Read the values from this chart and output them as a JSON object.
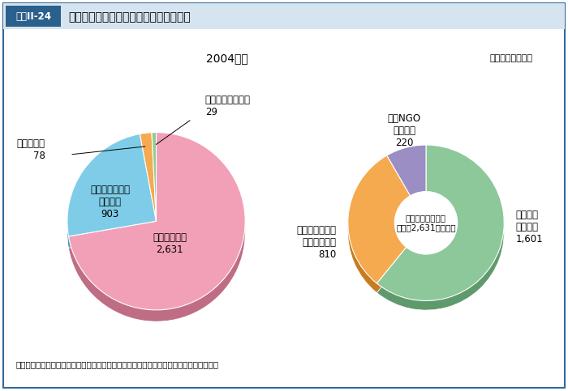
{
  "title": "対人地雷問題に関連する支援実績の割合",
  "header_label": "図表II-24",
  "subtitle": "2004年度",
  "unit_label": "（単位：万ドル）",
  "note": "注：地雷除去支援、犠牲者支援、地雷啓発活動支援の複数の事業にまたがる活動を支援。",
  "pie_values": [
    2631,
    903,
    78,
    29
  ],
  "pie_colors": [
    "#F2A0B8",
    "#7ECCE8",
    "#F5AA50",
    "#90CC90"
  ],
  "pie_label_texts": [
    "地雷除去支援\n2,631",
    "地雷対策（注）\n全般支援\n903",
    "犠牲者支援\n78",
    "地雷啓発活動支援\n29"
  ],
  "donut_values": [
    1601,
    810,
    220
  ],
  "donut_colors": [
    "#8DC89A",
    "#F5AA50",
    "#9B8EC4"
  ],
  "donut_label_texts": [
    "対人地雷\n対策無償\n1,601",
    "草の根・人間の\n安全保障無償\n810",
    "日本NGO\n支援無償\n220"
  ],
  "donut_center_text": "地雷除去支援内訳\n（合計2,631万ドル）",
  "bg_color": "#FFFFFF",
  "border_color": "#336699",
  "header_bg_color": "#D6E4F0",
  "header_label_bg": "#2B5F8C"
}
